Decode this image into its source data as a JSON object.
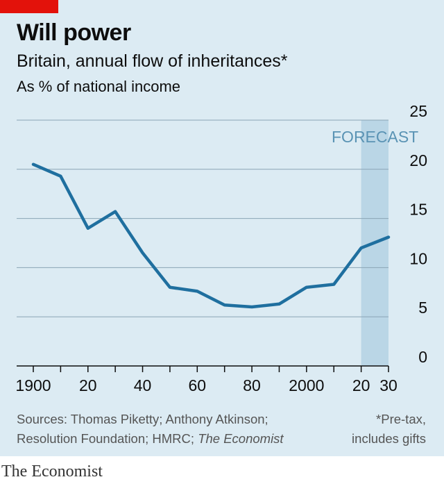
{
  "header": {
    "title": "Will power",
    "subtitle": "Britain, annual flow of inheritances*",
    "unit": "As % of national income"
  },
  "chart_data": {
    "type": "line",
    "title": "Will power",
    "subtitle": "Britain, annual flow of inheritances*",
    "ylabel": "As % of national income",
    "xlabel": "",
    "xlim": [
      1900,
      2030
    ],
    "ylim": [
      0,
      25
    ],
    "y_ticks": [
      0,
      5,
      10,
      15,
      20,
      25
    ],
    "y_tick_labels": [
      "0",
      "5",
      "10",
      "15",
      "20",
      "25"
    ],
    "x_ticks": [
      1900,
      1910,
      1920,
      1930,
      1940,
      1950,
      1960,
      1970,
      1980,
      1990,
      2000,
      2010,
      2020,
      2030
    ],
    "x_tick_labels": [
      {
        "year": 1900,
        "label": "1900"
      },
      {
        "year": 1920,
        "label": "20"
      },
      {
        "year": 1940,
        "label": "40"
      },
      {
        "year": 1960,
        "label": "60"
      },
      {
        "year": 1980,
        "label": "80"
      },
      {
        "year": 2000,
        "label": "2000"
      },
      {
        "year": 2020,
        "label": "20"
      },
      {
        "year": 2030,
        "label": "30"
      }
    ],
    "grid": "horizontal",
    "y_axis_side": "right",
    "forecast_band": {
      "from": 2020,
      "to": 2030,
      "label": "FORECAST"
    },
    "series": [
      {
        "color": "#1f6f9f",
        "x": [
          1900,
          1910,
          1920,
          1930,
          1940,
          1950,
          1960,
          1970,
          1980,
          1990,
          2000,
          2010,
          2020,
          2030
        ],
        "y": [
          20.5,
          19.3,
          14.0,
          15.7,
          11.5,
          8.0,
          7.6,
          6.2,
          6.0,
          6.3,
          8.0,
          8.3,
          12.0,
          13.1
        ]
      }
    ]
  },
  "footer": {
    "sources_line1": "Sources: Thomas Piketty; Anthony Atkinson;",
    "sources_line2": "Resolution Foundation; HMRC; ",
    "sources_italic": "The Economist",
    "footnote_line1": "*Pre-tax,",
    "footnote_line2": "includes gifts"
  },
  "brand": "The Economist",
  "colors": {
    "background": "#dcebf3",
    "accent_red": "#e3120b",
    "line": "#1f6f9f",
    "forecast_band": "#bad6e6",
    "forecast_text": "#5a93b4",
    "grid": "#8aa4b5",
    "axis": "#0d0d0d"
  }
}
